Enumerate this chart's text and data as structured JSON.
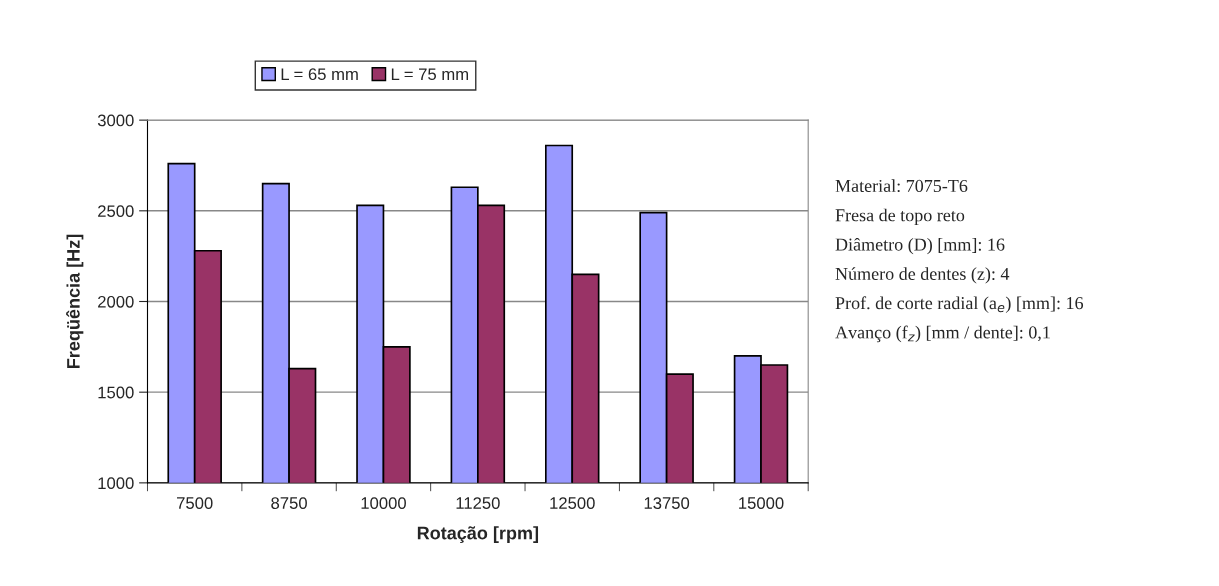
{
  "chart_data": {
    "type": "bar",
    "xlabel": "Rotação [rpm]",
    "ylabel": "Freqüência [Hz]",
    "categories": [
      "7500",
      "8750",
      "10000",
      "11250",
      "12500",
      "13750",
      "15000"
    ],
    "series": [
      {
        "name": "L = 65 mm",
        "color": "#9999ff",
        "values": [
          2760,
          2650,
          2530,
          2630,
          2860,
          2490,
          1700
        ]
      },
      {
        "name": "L = 75 mm",
        "color": "#993366",
        "values": [
          2280,
          1630,
          1750,
          2530,
          2150,
          1600,
          1650
        ]
      }
    ],
    "ylim": [
      1000,
      3000
    ],
    "yticks": [
      1000,
      1500,
      2000,
      2500,
      3000
    ],
    "grid": "y",
    "legend": "top",
    "annotations": [
      "Material: 7075-T6",
      "Fresa de topo reto",
      "Diâmetro (D) [mm]: 16",
      "Número de dentes (z): 4",
      "Prof. de corte radial (a$_{e}$) [mm]: 16",
      "Avanço (f$_{z}$) [mm / dente]: 0,1"
    ]
  }
}
